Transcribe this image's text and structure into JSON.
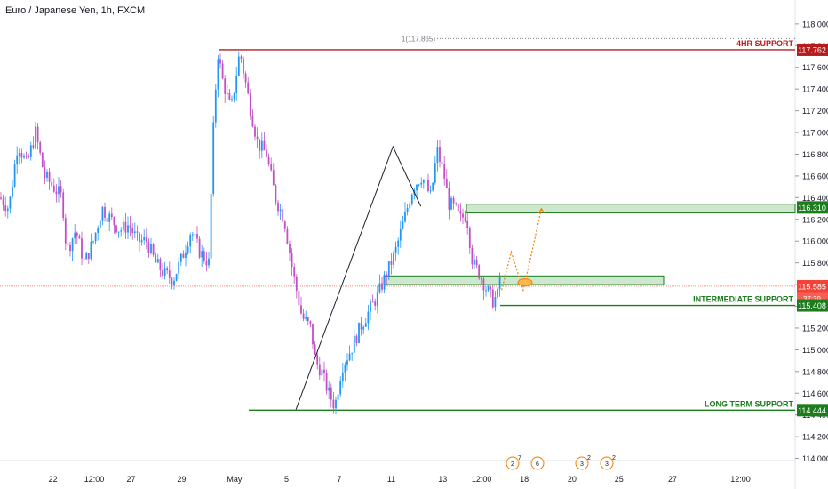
{
  "header": {
    "symbol_title": "Euro / Japanese Yen, 1h, FXCM"
  },
  "chart_data": {
    "type": "candlestick",
    "title": "Euro / Japanese Yen, 1h, FXCM",
    "xlabel": "",
    "ylabel": "",
    "ylim": [
      113.98,
      118.22
    ],
    "y_ticks": [
      "118.000",
      "117.800",
      "117.600",
      "117.400",
      "117.200",
      "117.000",
      "116.800",
      "116.600",
      "116.400",
      "116.200",
      "116.000",
      "115.800",
      "115.600",
      "115.400",
      "115.200",
      "115.000",
      "114.800",
      "114.600",
      "114.400",
      "114.200",
      "114.000"
    ],
    "x_ticks": [
      "22",
      "12:00",
      "27",
      "29",
      "May",
      "5",
      "7",
      "11",
      "13",
      "12:00",
      "18",
      "20",
      "25",
      "27",
      "12:00"
    ],
    "colors": {
      "up": "#2196f3",
      "down": "#c24fc6",
      "resistance": "#b71c1c",
      "support": "#1b7d1b",
      "zone_fill": "#a5d6a7",
      "projection": "#f57c00",
      "current_price": "#f44336"
    },
    "price_path": [
      [
        0,
        116.4
      ],
      [
        10,
        116.3
      ],
      [
        20,
        116.9
      ],
      [
        30,
        116.7
      ],
      [
        40,
        117.0
      ],
      [
        50,
        116.6
      ],
      [
        60,
        116.5
      ],
      [
        70,
        116.4
      ],
      [
        75,
        115.9
      ],
      [
        85,
        116.1
      ],
      [
        95,
        115.8
      ],
      [
        105,
        116.0
      ],
      [
        115,
        116.3
      ],
      [
        125,
        116.2
      ],
      [
        135,
        116.1
      ],
      [
        145,
        116.15
      ],
      [
        155,
        116.0
      ],
      [
        165,
        116.0
      ],
      [
        175,
        115.8
      ],
      [
        185,
        115.7
      ],
      [
        195,
        115.65
      ],
      [
        205,
        115.85
      ],
      [
        215,
        116.1
      ],
      [
        225,
        115.9
      ],
      [
        235,
        115.8
      ],
      [
        240,
        117.0
      ],
      [
        245,
        117.75
      ],
      [
        250,
        117.5
      ],
      [
        260,
        117.2
      ],
      [
        270,
        117.75
      ],
      [
        280,
        117.3
      ],
      [
        290,
        116.9
      ],
      [
        300,
        116.8
      ],
      [
        310,
        116.4
      ],
      [
        320,
        116.2
      ],
      [
        330,
        115.7
      ],
      [
        340,
        115.3
      ],
      [
        350,
        115.2
      ],
      [
        355,
        114.9
      ],
      [
        362,
        114.8
      ],
      [
        370,
        114.6
      ],
      [
        377,
        114.48
      ],
      [
        385,
        114.85
      ],
      [
        395,
        115.0
      ],
      [
        405,
        115.2
      ],
      [
        415,
        115.35
      ],
      [
        425,
        115.5
      ],
      [
        435,
        115.7
      ],
      [
        445,
        115.9
      ],
      [
        455,
        116.2
      ],
      [
        465,
        116.5
      ],
      [
        475,
        116.6
      ],
      [
        485,
        116.4
      ],
      [
        492,
        116.84
      ],
      [
        500,
        116.6
      ],
      [
        505,
        116.35
      ],
      [
        512,
        116.3
      ],
      [
        518,
        116.2
      ],
      [
        525,
        116.25
      ],
      [
        532,
        115.8
      ],
      [
        540,
        115.7
      ],
      [
        548,
        115.55
      ],
      [
        555,
        115.45
      ],
      [
        560,
        115.5
      ],
      [
        563,
        115.7
      ]
    ],
    "levels": [
      {
        "name": "4HR SUPPORT",
        "price": 117.762,
        "label": "117.762"
      },
      {
        "name": "INTERMEDIATE SUPPORT",
        "price": 115.408,
        "label": "115.408"
      },
      {
        "name": "LONG TERM SUPPORT",
        "price": 114.444,
        "label": "114.444"
      }
    ],
    "zones": [
      {
        "top": 116.34,
        "bottom": 116.26
      },
      {
        "top": 115.68,
        "bottom": 115.6
      }
    ],
    "current_price": {
      "price": 115.585,
      "label": "115.585",
      "countdown": "37:39"
    },
    "zone_price_label": "116.310",
    "alert": {
      "label": "1(117.865)",
      "price": 117.865
    },
    "pattern_points": [
      [
        0.37,
        114.45
      ],
      [
        0.492,
        116.87
      ],
      [
        0.527,
        116.32
      ]
    ],
    "projection_path": [
      [
        0.565,
        115.55
      ],
      [
        0.577,
        115.9
      ],
      [
        0.592,
        115.55
      ],
      [
        0.6,
        115.8
      ],
      [
        0.615,
        116.3
      ]
    ],
    "event_icons": [
      {
        "label": "2",
        "badge": "7"
      },
      {
        "label": "6",
        "badge": ""
      },
      {
        "label": "3",
        "badge": "2"
      },
      {
        "label": "3",
        "badge": "2"
      }
    ]
  }
}
